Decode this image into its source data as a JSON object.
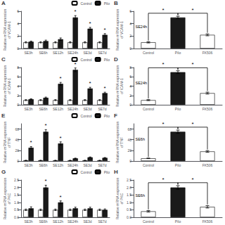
{
  "chart_data": [
    {
      "type": "bar",
      "title": "A",
      "ylabel": "Relative mRNA expression\nof VCAM-1",
      "categories": [
        "SE3h",
        "SE6h",
        "SE12h",
        "SE24h",
        "SE3d",
        "SE7d"
      ],
      "series": [
        {
          "name": "Control",
          "color": "#ffffff",
          "values": [
            1.0,
            1.0,
            1.0,
            1.0,
            1.0,
            1.0
          ],
          "errors": [
            0.1,
            0.1,
            0.1,
            0.1,
            0.1,
            0.1
          ]
        },
        {
          "name": "Pilo",
          "color": "#1a1a1a",
          "values": [
            1.1,
            1.2,
            1.5,
            5.0,
            3.2,
            2.2
          ],
          "errors": [
            0.1,
            0.15,
            0.2,
            0.3,
            0.2,
            0.2
          ]
        }
      ],
      "ylim": [
        0,
        6
      ],
      "yticks": [
        0,
        2,
        4,
        6
      ],
      "grid": false,
      "legend": "upper right",
      "annotations": [
        {
          "text": "*",
          "category": "SE24h",
          "series": "Pilo"
        },
        {
          "text": "*",
          "category": "SE3d",
          "series": "Pilo"
        },
        {
          "text": "*",
          "category": "SE7d",
          "series": "Pilo"
        }
      ]
    },
    {
      "type": "bar",
      "title": "B",
      "ylabel": "Relative mRNA expression\nof VCAM-1",
      "categories": [
        "Control",
        "Pilo",
        "FK506"
      ],
      "values": [
        1.0,
        5.0,
        2.2
      ],
      "errors": [
        0.1,
        0.2,
        0.15
      ],
      "colors": [
        "#ffffff",
        "#1a1a1a",
        "#ffffff"
      ],
      "ylim": [
        0,
        6
      ],
      "yticks": [
        0,
        2,
        4,
        6
      ],
      "grid": false,
      "annotations": [
        {
          "text": "SE24h"
        },
        {
          "text": "*",
          "from": "Control",
          "to": "Pilo"
        },
        {
          "text": "*",
          "from": "Pilo",
          "to": "FK506"
        }
      ]
    },
    {
      "type": "bar",
      "title": "C",
      "ylabel": "Relative mRNA expression\nof ICAM-1",
      "categories": [
        "SE3h",
        "SE6h",
        "SE12h",
        "SE24h",
        "SE3d",
        "SE7d"
      ],
      "series": [
        {
          "name": "Control",
          "color": "#ffffff",
          "values": [
            1.0,
            1.0,
            1.0,
            1.0,
            1.0,
            1.0
          ],
          "errors": [
            0.1,
            0.1,
            0.1,
            0.1,
            0.1,
            0.1
          ]
        },
        {
          "name": "Pilo",
          "color": "#1a1a1a",
          "values": [
            1.2,
            1.5,
            4.5,
            7.5,
            3.5,
            2.5
          ],
          "errors": [
            0.1,
            0.15,
            0.3,
            0.4,
            0.25,
            0.2
          ]
        }
      ],
      "ylim": [
        0,
        8
      ],
      "yticks": [
        0,
        2,
        4,
        6,
        8
      ],
      "grid": false,
      "legend": "upper right",
      "annotations": [
        {
          "text": "*",
          "category": "SE12h",
          "series": "Pilo"
        },
        {
          "text": "*",
          "category": "SE24h",
          "series": "Pilo"
        },
        {
          "text": "*",
          "category": "SE3d",
          "series": "Pilo"
        },
        {
          "text": "*",
          "category": "SE7d",
          "series": "Pilo"
        }
      ]
    },
    {
      "type": "bar",
      "title": "D",
      "ylabel": "Relative mRNA expression\nof ICAM-1",
      "categories": [
        "Control",
        "Pilo",
        "FK506"
      ],
      "values": [
        1.0,
        7.0,
        2.5
      ],
      "errors": [
        0.1,
        0.3,
        0.2
      ],
      "colors": [
        "#ffffff",
        "#1a1a1a",
        "#ffffff"
      ],
      "ylim": [
        0,
        8
      ],
      "yticks": [
        0,
        2,
        4,
        6,
        8
      ],
      "grid": false,
      "annotations": [
        {
          "text": "SE24h"
        },
        {
          "text": "*",
          "from": "Control",
          "to": "Pilo"
        },
        {
          "text": "*",
          "from": "Pilo",
          "to": "FK506"
        }
      ]
    },
    {
      "type": "bar",
      "title": "E",
      "ylabel": "Relative mRNA expression\nof TNF",
      "categories": [
        "SE3h",
        "SE6h",
        "SE12h",
        "SE24h",
        "SE3d",
        "SE7d"
      ],
      "series": [
        {
          "name": "Control",
          "color": "#ffffff",
          "values": [
            1.0,
            1.0,
            1.0,
            1.0,
            1.0,
            1.0
          ],
          "errors": [
            0.5,
            0.5,
            0.5,
            0.5,
            0.5,
            0.5
          ]
        },
        {
          "name": "Pilo",
          "color": "#1a1a1a",
          "values": [
            25.0,
            55.0,
            33.0,
            5.0,
            7.0,
            6.0
          ],
          "errors": [
            2.0,
            4.0,
            3.0,
            0.5,
            0.7,
            0.6
          ]
        }
      ],
      "ylim": [
        0,
        70
      ],
      "yticks": [
        0,
        20,
        40,
        60
      ],
      "grid": false,
      "legend": "upper right",
      "annotations": [
        {
          "text": "*",
          "category": "SE3h",
          "series": "Pilo"
        },
        {
          "text": "*",
          "category": "SE6h",
          "series": "Pilo"
        },
        {
          "text": "*",
          "category": "SE12h",
          "series": "Pilo"
        }
      ]
    },
    {
      "type": "bar",
      "title": "F",
      "ylabel": "Relative mRNA expression\nof TNF",
      "categories": [
        "Control",
        "Pilo",
        "FK506"
      ],
      "values": [
        5.0,
        55.0,
        18.0
      ],
      "errors": [
        0.5,
        3.0,
        1.5
      ],
      "colors": [
        "#ffffff",
        "#1a1a1a",
        "#ffffff"
      ],
      "ylim": [
        0,
        70
      ],
      "yticks": [
        0,
        20,
        40,
        60
      ],
      "grid": false,
      "annotations": [
        {
          "text": "SE6h"
        },
        {
          "text": "*",
          "from": "Control",
          "to": "Pilo"
        },
        {
          "text": "*",
          "from": "Pilo",
          "to": "FK506"
        }
      ]
    },
    {
      "type": "bar",
      "title": "G",
      "ylabel": "Relative mRNA expression\nof PKC",
      "categories": [
        "SE3h",
        "SE6h",
        "SE12h",
        "SE24h",
        "SE3d",
        "SE7d"
      ],
      "series": [
        {
          "name": "Control",
          "color": "#ffffff",
          "values": [
            0.5,
            0.5,
            0.5,
            0.5,
            0.5,
            0.5
          ],
          "errors": [
            0.05,
            0.05,
            0.05,
            0.05,
            0.05,
            0.05
          ]
        },
        {
          "name": "Pilo",
          "color": "#1a1a1a",
          "values": [
            0.6,
            2.0,
            1.0,
            0.6,
            0.6,
            0.5
          ],
          "errors": [
            0.1,
            0.15,
            0.1,
            0.08,
            0.08,
            0.06
          ]
        }
      ],
      "ylim": [
        0,
        2.5
      ],
      "yticks": [
        {
          "value": 0,
          "label": "0.0"
        },
        0.5,
        {
          "value": 1.0,
          "label": "1.0"
        },
        1.5,
        {
          "value": 2.0,
          "label": "2.0"
        },
        2.5
      ],
      "grid": false,
      "legend": "upper right",
      "annotations": [
        {
          "text": "*",
          "category": "SE6h",
          "series": "Pilo"
        },
        {
          "text": "*",
          "category": "SE12h",
          "series": "Pilo"
        }
      ]
    },
    {
      "type": "bar",
      "title": "H",
      "ylabel": "Relative mRNA expression\nof PKC",
      "categories": [
        "Control",
        "Pilo",
        "FK506"
      ],
      "values": [
        0.4,
        2.0,
        0.7
      ],
      "errors": [
        0.05,
        0.12,
        0.08
      ],
      "colors": [
        "#ffffff",
        "#1a1a1a",
        "#ffffff"
      ],
      "ylim": [
        0,
        2.5
      ],
      "yticks": [
        {
          "value": 0,
          "label": "0.0"
        },
        0.5,
        {
          "value": 1.0,
          "label": "1.0"
        },
        1.5,
        {
          "value": 2.0,
          "label": "2.0"
        },
        2.5
      ],
      "grid": false,
      "annotations": [
        {
          "text": "SE6h"
        },
        {
          "text": "*",
          "from": "Control",
          "to": "Pilo"
        },
        {
          "text": "*",
          "from": "Pilo",
          "to": "FK506"
        }
      ]
    }
  ]
}
